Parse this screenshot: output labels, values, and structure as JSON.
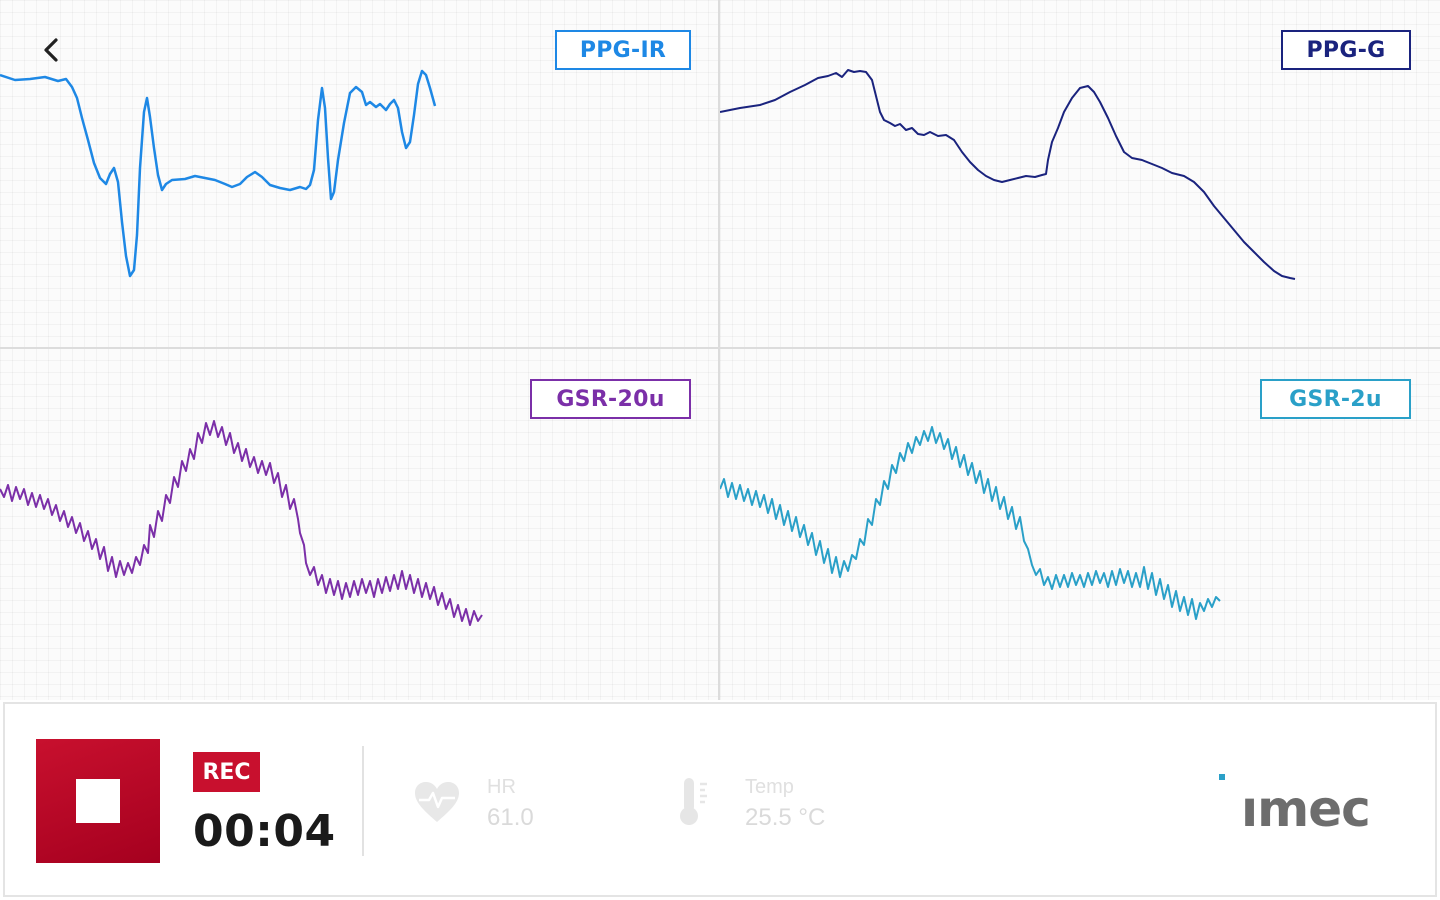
{
  "navigation": {
    "back_icon": "chevron-left-icon"
  },
  "panels": [
    {
      "id": "ppg-ir",
      "label": "PPG-IR",
      "color": "#1e88e5"
    },
    {
      "id": "ppg-g",
      "label": "PPG-G",
      "color": "#1a237e"
    },
    {
      "id": "gsr-20u",
      "label": "GSR-20u",
      "color": "#7b2fa8"
    },
    {
      "id": "gsr-2u",
      "label": "GSR-2u",
      "color": "#2aa0c8"
    }
  ],
  "recording": {
    "badge": "REC",
    "timer": "00:04",
    "stop_icon": "stop-icon",
    "accent": "#c8102e"
  },
  "metrics": {
    "hr": {
      "label": "HR",
      "value": "61.0",
      "icon": "heart-icon"
    },
    "temp": {
      "label": "Temp",
      "value": "25.5 °C",
      "icon": "thermometer-icon"
    }
  },
  "brand": {
    "logo_text": "imec",
    "icon": "imec-logo"
  }
}
